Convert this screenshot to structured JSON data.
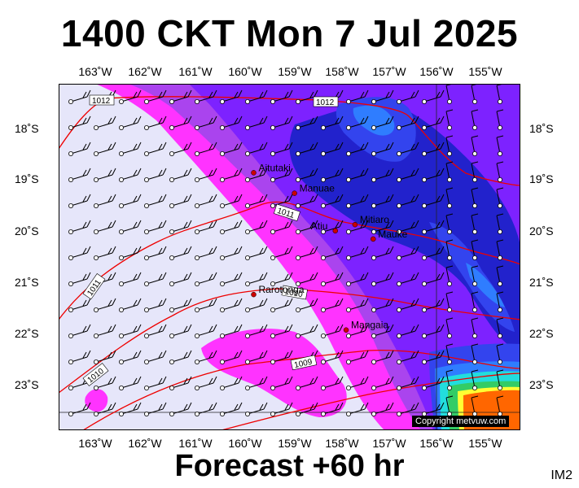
{
  "title": "1400 CKT Mon 7 Jul 2025",
  "footer": "Forecast +60 hr",
  "image_code": "IM2",
  "copyright": "Copyright metvuw.com",
  "longitude_labels": [
    "163˚W",
    "162˚W",
    "161˚W",
    "160˚W",
    "159˚W",
    "158˚W",
    "157˚W",
    "156˚W",
    "155˚W"
  ],
  "latitude_labels": [
    "18˚S",
    "19˚S",
    "20˚S",
    "21˚S",
    "22˚S",
    "23˚S"
  ],
  "places": [
    {
      "name": "Aitutaki",
      "lon": -159.78,
      "lat": -18.86
    },
    {
      "name": "Manuae",
      "lon": -158.95,
      "lat": -19.26
    },
    {
      "name": "Mitiaro",
      "lon": -157.72,
      "lat": -19.87
    },
    {
      "name": "Atiu",
      "lon": -158.12,
      "lat": -19.99
    },
    {
      "name": "Mauke",
      "lon": -157.35,
      "lat": -20.15
    },
    {
      "name": "Rarotonga",
      "lon": -159.78,
      "lat": -21.23
    },
    {
      "name": "Mangaia",
      "lon": -157.9,
      "lat": -21.92
    }
  ],
  "isobar_labels": [
    "1012",
    "1012",
    "1011",
    "1011",
    "1010",
    "1010",
    "1009"
  ],
  "colors": {
    "land": "#e6e6fa",
    "magenta": "#ff33ff",
    "violet": "#aa44ee",
    "purple": "#7d22ff",
    "blue": "#3344ee",
    "dark_blue": "#2222cc",
    "light_blue": "#2f7dff",
    "cyan": "#22dddd",
    "green": "#33cc66",
    "yellow": "#ffff33",
    "orange": "#ff6600",
    "isobar": "#ee0000"
  }
}
